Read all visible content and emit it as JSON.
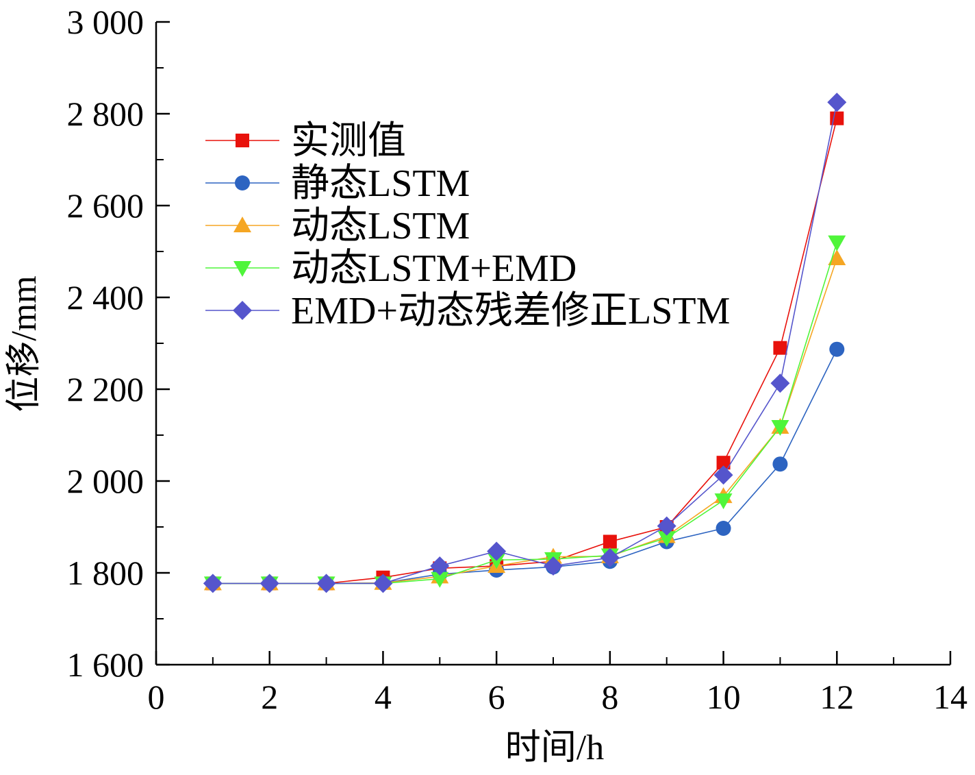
{
  "chart_data": {
    "type": "line",
    "title": "",
    "xlabel": "时间/h",
    "ylabel": "位移/mm",
    "xlim": [
      0,
      14
    ],
    "ylim": [
      1600,
      3000
    ],
    "x_major_ticks": [
      0,
      2,
      4,
      6,
      8,
      10,
      12,
      14
    ],
    "x_tick_labels": [
      "0",
      "2",
      "4",
      "6",
      "8",
      "10",
      "12",
      "14"
    ],
    "y_major_ticks": [
      1600,
      1800,
      2000,
      2200,
      2400,
      2600,
      2800,
      3000
    ],
    "y_tick_labels": [
      "1 600",
      "1 800",
      "2 000",
      "2 200",
      "2 400",
      "2 600",
      "2 800",
      "3 000"
    ],
    "grid": false,
    "legend_position": "top-left",
    "x": [
      1,
      2,
      3,
      4,
      5,
      6,
      7,
      8,
      9,
      10,
      11,
      12
    ],
    "series": [
      {
        "name": "实测值",
        "color": "#e8120c",
        "marker": "square",
        "values": [
          1777,
          1777,
          1777,
          1790,
          1810,
          1815,
          1825,
          1868,
          1900,
          2040,
          2290,
          2790
        ]
      },
      {
        "name": "静态LSTM",
        "color": "#2d64c1",
        "marker": "circle",
        "values": [
          1777,
          1777,
          1777,
          1778,
          1797,
          1806,
          1813,
          1825,
          1868,
          1897,
          2037,
          2287
        ]
      },
      {
        "name": "动态LSTM",
        "color": "#f5a623",
        "marker": "triangle-up",
        "values": [
          1777,
          1777,
          1777,
          1778,
          1792,
          1815,
          1835,
          1836,
          1880,
          1967,
          2118,
          2485
        ]
      },
      {
        "name": "动态LSTM+EMD",
        "color": "#4ff53a",
        "marker": "triangle-down",
        "values": [
          1777,
          1777,
          1777,
          1777,
          1787,
          1828,
          1830,
          1838,
          1876,
          1958,
          2118,
          2520
        ]
      },
      {
        "name": "EMD+动态残差修正LSTM",
        "color": "#5555cc",
        "marker": "diamond",
        "values": [
          1777,
          1777,
          1777,
          1777,
          1815,
          1847,
          1815,
          1833,
          1902,
          2013,
          2213,
          2825
        ]
      }
    ]
  }
}
